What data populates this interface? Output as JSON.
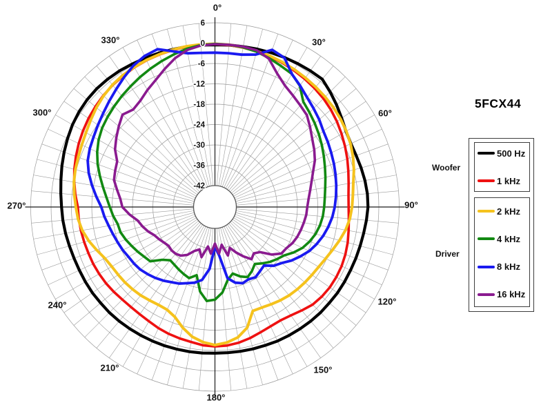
{
  "title": "5FCX44",
  "legend": {
    "groups": [
      {
        "label": "Woofer",
        "items": [
          {
            "label": "500 Hz",
            "series_index": 0
          },
          {
            "label": "1 kHz",
            "series_index": 1
          }
        ]
      },
      {
        "label": "Driver",
        "items": [
          {
            "label": "2 kHz",
            "series_index": 2
          },
          {
            "label": "4 kHz",
            "series_index": 3
          },
          {
            "label": "8 kHz",
            "series_index": 4
          },
          {
            "label": "16 kHz",
            "series_index": 5
          }
        ]
      }
    ]
  },
  "chart_data": {
    "type": "line",
    "subtype": "polar-directivity",
    "title": "5FCX44",
    "angle_unit": "degrees, 0 at top, clockwise",
    "angle_step_deg": 5,
    "angle_labels": [
      "0°",
      "30°",
      "60°",
      "90°",
      "120°",
      "150°",
      "180°",
      "210°",
      "240°",
      "270°",
      "300°",
      "330°"
    ],
    "radial_axis": {
      "unit": "dB",
      "max": 6,
      "min": -42,
      "ring_step_db": 6,
      "tick_labels": [
        "6",
        "0",
        "-6",
        "-12",
        "-18",
        "-24",
        "-30",
        "-36",
        "-42"
      ]
    },
    "grid": {
      "spoke_step_deg": 5,
      "grid_on": true
    },
    "legend_position": "right",
    "series": [
      {
        "name": "500 Hz",
        "group": "Woofer",
        "color": "#000000",
        "width": 4.2,
        "values": [
          -0.5,
          -0.4,
          -0.3,
          -0.1,
          0.1,
          0.3,
          0.5,
          0.7,
          0.9,
          -0.3,
          -1.5,
          -2.7,
          -3.7,
          -4.1,
          -4.0,
          -3.7,
          -3.4,
          -3.2,
          -3.2,
          -3.5,
          -3.8,
          -4.0,
          -4.1,
          -4.2,
          -4.2,
          -4.2,
          -4.3,
          -4.3,
          -4.4,
          -4.5,
          -4.6,
          -4.7,
          -4.9,
          -5.0,
          -5.1,
          -5.2,
          -5.2,
          -5.1,
          -5.0,
          -4.9,
          -4.8,
          -4.7,
          -4.6,
          -4.5,
          -4.4,
          -4.3,
          -4.3,
          -4.2,
          -4.2,
          -4.2,
          -4.1,
          -3.9,
          -3.6,
          -3.3,
          -3.1,
          -2.7,
          -2.2,
          -1.6,
          -1.0,
          -0.4,
          0.2,
          0.6,
          0.9,
          1.0,
          0.9,
          0.7,
          0.4,
          0.2,
          0.0,
          -0.2,
          -0.3,
          -0.4
        ]
      },
      {
        "name": "1 kHz",
        "group": "Woofer",
        "color": "#ee1111",
        "width": 3.6,
        "values": [
          -0.3,
          -0.4,
          -0.6,
          -0.8,
          -1.1,
          -1.4,
          -1.8,
          -2.2,
          -2.6,
          -3.1,
          -3.7,
          -4.4,
          -5.2,
          -6.0,
          -6.8,
          -7.6,
          -8.3,
          -8.8,
          -8.9,
          -8.7,
          -8.3,
          -7.8,
          -7.4,
          -7.1,
          -7.0,
          -7.0,
          -7.2,
          -7.6,
          -8.5,
          -9.3,
          -9.7,
          -9.5,
          -9.0,
          -8.3,
          -7.7,
          -7.3,
          -7.2,
          -7.4,
          -7.9,
          -8.2,
          -8.5,
          -8.9,
          -9.4,
          -9.7,
          -9.8,
          -9.7,
          -9.4,
          -9.1,
          -8.9,
          -8.7,
          -8.6,
          -8.4,
          -8.2,
          -8.0,
          -7.9,
          -7.0,
          -6.2,
          -5.4,
          -4.7,
          -4.0,
          -3.4,
          -2.8,
          -2.3,
          -1.8,
          -1.4,
          -1.1,
          -0.8,
          -0.6,
          -0.5,
          -0.4,
          -0.3,
          -0.3
        ]
      },
      {
        "name": "2 kHz",
        "group": "Driver",
        "color": "#f5c21d",
        "width": 4.0,
        "values": [
          -0.2,
          -0.3,
          -0.5,
          -0.7,
          -0.9,
          -1.2,
          -1.5,
          -1.8,
          -2.1,
          -2.4,
          -2.7,
          -3.1,
          -3.6,
          -4.2,
          -5.0,
          -5.9,
          -6.9,
          -7.5,
          -7.9,
          -8.4,
          -9.2,
          -10.3,
          -11.4,
          -12.3,
          -13.0,
          -13.4,
          -13.7,
          -14.0,
          -14.3,
          -14.7,
          -15.2,
          -15.6,
          -15.7,
          -11.5,
          -9.3,
          -8.2,
          -7.6,
          -8.3,
          -9.5,
          -11.5,
          -13.8,
          -14.9,
          -15.0,
          -14.7,
          -14.3,
          -14.0,
          -13.7,
          -13.5,
          -13.2,
          -12.5,
          -11.2,
          -9.8,
          -8.6,
          -7.8,
          -7.3,
          -6.7,
          -6.1,
          -5.7,
          -5.4,
          -5.0,
          -4.4,
          -3.6,
          -2.7,
          -1.9,
          -1.3,
          -0.9,
          -0.7,
          -0.5,
          -0.4,
          -0.3,
          -0.2,
          -0.2
        ]
      },
      {
        "name": "4 kHz",
        "group": "Driver",
        "color": "#128912",
        "width": 3.6,
        "values": [
          -0.2,
          -0.3,
          -0.5,
          -0.9,
          -1.6,
          -2.4,
          -3.0,
          -4.7,
          -7.8,
          -8.9,
          -9.9,
          -10.9,
          -11.9,
          -12.9,
          -13.8,
          -14.6,
          -15.3,
          -15.8,
          -16.1,
          -16.4,
          -16.9,
          -17.6,
          -18.6,
          -19.8,
          -21.5,
          -23.4,
          -24.4,
          -25.4,
          -26.6,
          -27.8,
          -26.5,
          -25.5,
          -26.5,
          -28.0,
          -26.5,
          -23.0,
          -21.0,
          -20.5,
          -23.0,
          -27.5,
          -26.0,
          -26.5,
          -27.0,
          -27.5,
          -27.8,
          -26.3,
          -23.4,
          -22.8,
          -22.0,
          -21.2,
          -20.3,
          -19.5,
          -19.2,
          -18.2,
          -17.3,
          -16.2,
          -14.8,
          -13.2,
          -11.5,
          -10.0,
          -8.7,
          -7.7,
          -7.0,
          -6.3,
          -5.6,
          -4.9,
          -4.1,
          -3.3,
          -2.5,
          -1.7,
          -0.9,
          -0.4
        ]
      },
      {
        "name": "8 kHz",
        "group": "Driver",
        "color": "#1a1af0",
        "width": 3.8,
        "values": [
          -2.8,
          -2.8,
          -2.7,
          -1.8,
          1.0,
          0.2,
          -3.0,
          -4.6,
          -6.1,
          -7.2,
          -8.2,
          -9.3,
          -9.9,
          -10.5,
          -11.0,
          -11.5,
          -12.0,
          -12.5,
          -13.0,
          -13.6,
          -14.4,
          -15.3,
          -16.4,
          -17.6,
          -19.2,
          -20.8,
          -22.6,
          -23.8,
          -25.8,
          -25.2,
          -24.4,
          -24.8,
          -24.4,
          -25.2,
          -27.0,
          -34.0,
          -36.5,
          -30.0,
          -26.5,
          -25.2,
          -24.4,
          -23.4,
          -22.7,
          -21.8,
          -21.0,
          -20.3,
          -19.6,
          -19.2,
          -18.9,
          -18.3,
          -17.8,
          -17.2,
          -16.5,
          -15.6,
          -14.8,
          -13.2,
          -11.5,
          -9.8,
          -8.4,
          -7.6,
          -7.0,
          -6.2,
          -5.3,
          -4.2,
          -3.0,
          -1.6,
          -0.2,
          0.8,
          1.2,
          -0.8,
          -2.3,
          -2.7
        ]
      },
      {
        "name": "16 kHz",
        "group": "Driver",
        "color": "#8a1b8f",
        "width": 3.6,
        "values": [
          -0.3,
          -0.3,
          -0.3,
          -0.5,
          -1.8,
          -4.9,
          -7.0,
          -8.2,
          -9.2,
          -10.0,
          -11.7,
          -13.3,
          -14.5,
          -15.8,
          -17.5,
          -18.8,
          -19.8,
          -20.6,
          -21.1,
          -21.3,
          -21.7,
          -22.1,
          -22.5,
          -23.1,
          -24.0,
          -24.4,
          -26.5,
          -29.5,
          -30.5,
          -29.5,
          -31.5,
          -33.5,
          -35.5,
          -33.5,
          -37.0,
          -34.5,
          -37.5,
          -34.5,
          -36.5,
          -33.0,
          -35.0,
          -34.0,
          -32.0,
          -30.8,
          -30.3,
          -30.2,
          -30.5,
          -30.0,
          -29.3,
          -28.6,
          -27.3,
          -26.2,
          -25.2,
          -23.0,
          -21.0,
          -20.3,
          -19.0,
          -17.5,
          -17.0,
          -16.5,
          -14.3,
          -12.8,
          -11.3,
          -9.8,
          -10.8,
          -10.0,
          -8.5,
          -7.0,
          -5.0,
          -2.9,
          -1.3,
          -0.5
        ]
      }
    ]
  }
}
